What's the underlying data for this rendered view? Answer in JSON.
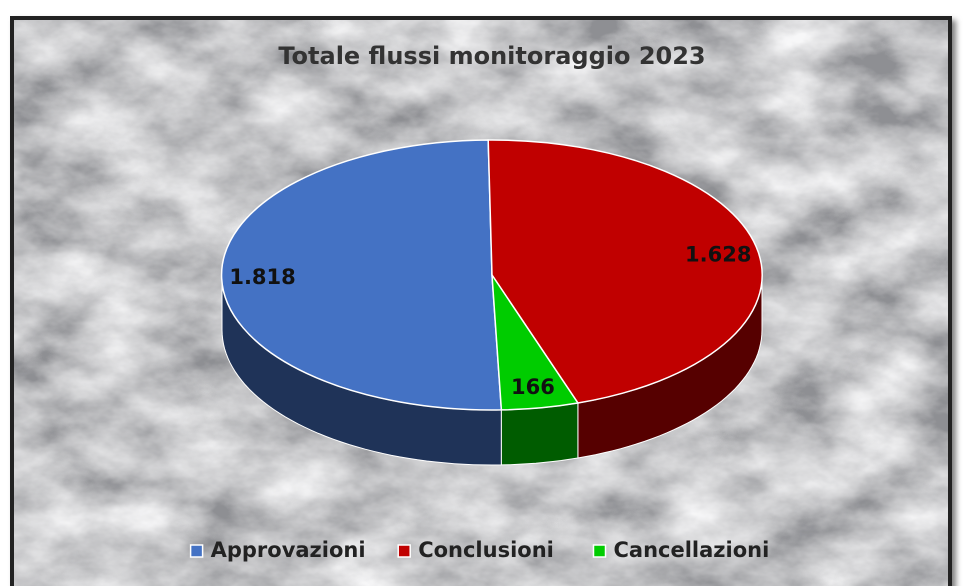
{
  "chart_data": {
    "type": "pie3d",
    "title": "Totale flussi monitoraggio 2023",
    "categories": [
      "Approvazioni",
      "Conclusioni",
      "Cancellazioni"
    ],
    "values": [
      1818,
      1628,
      166
    ],
    "value_labels": [
      "1.818",
      "1.628",
      "166"
    ],
    "colors": [
      "#4472c4",
      "#c00000",
      "#00cc00"
    ],
    "legend": "bottom"
  }
}
